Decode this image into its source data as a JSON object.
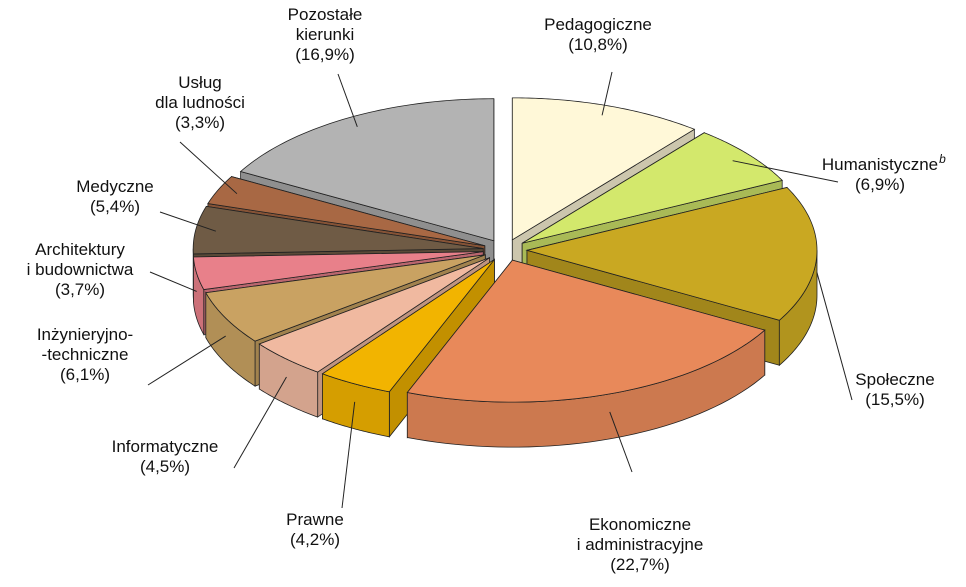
{
  "chart_data": {
    "type": "pie3d",
    "categories": [
      "Pedagogiczne",
      "Humanistyczne",
      "Społeczne",
      "Ekonomiczne\ni administracyjne",
      "Prawne",
      "Informatyczne",
      "Inżynieryjno-\n-techniczne",
      "Architektury\ni budownictwa",
      "Medyczne",
      "Usług\ndla ludności",
      "Pozostałe\nkierunki"
    ],
    "label_superscripts": [
      null,
      "b",
      null,
      null,
      null,
      null,
      null,
      null,
      null,
      null,
      null
    ],
    "values": [
      10.8,
      6.9,
      15.5,
      22.7,
      4.2,
      4.5,
      6.1,
      3.7,
      5.4,
      3.3,
      16.9
    ],
    "value_labels": [
      "(10,8%)",
      "(6,9%)",
      "(15,5%)",
      "(22,7%)",
      "(4,2%)",
      "(4,5%)",
      "(6,1%)",
      "(3,7%)",
      "(5,4%)",
      "(3,3%)",
      "(16,9%)"
    ],
    "colors": [
      "#fff8d8",
      "#d3e86c",
      "#c9a822",
      "#e8895a",
      "#f2b400",
      "#f0b9a0",
      "#c9a262",
      "#e8808a",
      "#6f5b45",
      "#a86844",
      "#b3b3b3"
    ]
  }
}
